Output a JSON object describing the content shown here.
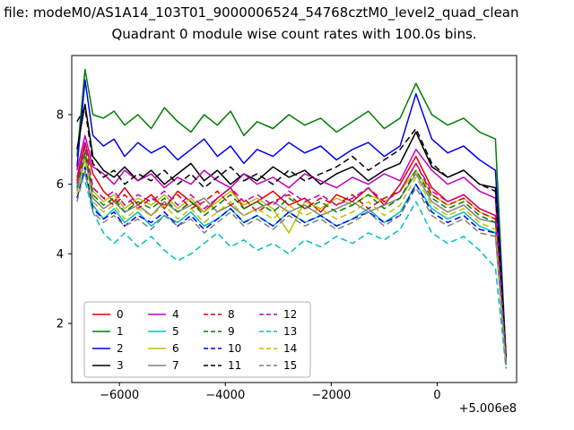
{
  "figure": {
    "file_line": "n file: modeM0/AS1A14_103T01_9000006524_54768cztM0_level2_quad_clean",
    "title": "Quadrant 0 module wise count rates with 100.0s bins."
  },
  "chart_data": {
    "type": "line",
    "title": "Quadrant 0 module wise count rates with 100.0s bins.",
    "xlabel": "",
    "ylabel": "",
    "x_offset_label": "+5.006e8",
    "xlim": [
      -6900,
      1500
    ],
    "ylim": [
      0.3,
      9.7
    ],
    "xticks": [
      -6000,
      -4000,
      -2000,
      0
    ],
    "xtick_labels": [
      "−6000",
      "−4000",
      "−2000",
      "0"
    ],
    "yticks": [
      2,
      4,
      6,
      8
    ],
    "ytick_labels": [
      "2",
      "4",
      "6",
      "8"
    ],
    "grid": false,
    "legend_position": "lower left",
    "legend_columns": 4,
    "x": [
      -6800,
      -6650,
      -6500,
      -6300,
      -6100,
      -5900,
      -5650,
      -5400,
      -5150,
      -4900,
      -4650,
      -4400,
      -4150,
      -3900,
      -3650,
      -3400,
      -3100,
      -2800,
      -2500,
      -2200,
      -1900,
      -1600,
      -1300,
      -1000,
      -700,
      -400,
      -100,
      200,
      500,
      800,
      1100,
      1300
    ],
    "series": [
      {
        "name": "0",
        "color": "#e00000",
        "dash": "solid",
        "values": [
          6.2,
          7.2,
          6.3,
          5.8,
          5.5,
          5.9,
          5.4,
          5.7,
          5.3,
          5.8,
          5.5,
          5.2,
          5.6,
          5.9,
          5.3,
          5.5,
          5.8,
          5.4,
          5.6,
          5.2,
          5.7,
          5.5,
          5.9,
          5.4,
          6.0,
          6.8,
          5.9,
          5.5,
          5.7,
          5.3,
          5.1,
          0.9
        ]
      },
      {
        "name": "1",
        "color": "#007f00",
        "dash": "solid",
        "values": [
          6.8,
          9.3,
          8.0,
          7.9,
          8.1,
          7.7,
          8.0,
          7.6,
          8.2,
          7.8,
          7.5,
          8.0,
          7.7,
          8.1,
          7.4,
          7.8,
          7.6,
          8.0,
          7.7,
          7.9,
          7.5,
          7.8,
          8.1,
          7.6,
          7.9,
          8.9,
          8.0,
          7.7,
          7.9,
          7.5,
          7.3,
          1.0
        ]
      },
      {
        "name": "2",
        "color": "#0000ee",
        "dash": "solid",
        "values": [
          6.5,
          9.0,
          7.4,
          7.1,
          7.3,
          6.8,
          7.2,
          6.9,
          7.1,
          6.7,
          7.0,
          7.3,
          6.8,
          7.1,
          6.6,
          7.0,
          6.8,
          7.2,
          6.9,
          7.1,
          6.7,
          7.0,
          7.2,
          6.8,
          7.1,
          8.6,
          7.3,
          6.9,
          7.1,
          6.7,
          6.4,
          1.1
        ]
      },
      {
        "name": "3",
        "color": "#000000",
        "dash": "solid",
        "values": [
          7.0,
          8.3,
          6.8,
          6.4,
          6.2,
          6.5,
          6.1,
          6.4,
          6.0,
          6.3,
          6.6,
          6.1,
          6.4,
          6.0,
          6.3,
          6.1,
          6.5,
          6.2,
          6.4,
          6.0,
          6.3,
          6.5,
          6.1,
          6.4,
          6.6,
          7.5,
          6.5,
          6.2,
          6.4,
          6.0,
          5.9,
          1.0
        ]
      },
      {
        "name": "4",
        "color": "#bf00bf",
        "dash": "solid",
        "values": [
          6.4,
          7.4,
          6.5,
          6.3,
          6.0,
          6.4,
          6.1,
          6.3,
          5.9,
          6.2,
          6.0,
          6.4,
          6.1,
          5.9,
          6.3,
          6.0,
          6.2,
          5.9,
          6.3,
          6.1,
          5.9,
          6.2,
          6.0,
          6.3,
          6.1,
          7.0,
          6.4,
          6.0,
          6.2,
          5.8,
          5.6,
          0.9
        ]
      },
      {
        "name": "5",
        "color": "#00bfbf",
        "dash": "solid",
        "values": [
          5.9,
          6.3,
          5.4,
          5.0,
          5.3,
          4.9,
          5.2,
          4.8,
          5.1,
          4.9,
          5.2,
          4.8,
          5.0,
          5.3,
          4.9,
          5.1,
          4.8,
          5.2,
          4.9,
          5.1,
          4.8,
          5.0,
          5.3,
          4.9,
          5.2,
          6.0,
          5.3,
          5.0,
          5.2,
          4.8,
          4.6,
          0.8
        ]
      },
      {
        "name": "6",
        "color": "#bfbf00",
        "dash": "solid",
        "values": [
          6.0,
          7.0,
          5.8,
          5.5,
          5.7,
          5.3,
          5.6,
          5.4,
          5.7,
          5.3,
          5.6,
          5.2,
          5.5,
          5.8,
          5.4,
          5.6,
          5.3,
          4.6,
          5.5,
          5.3,
          5.6,
          5.4,
          5.7,
          5.5,
          5.8,
          6.4,
          5.7,
          5.4,
          5.6,
          5.2,
          5.0,
          0.9
        ]
      },
      {
        "name": "7",
        "color": "#808080",
        "dash": "solid",
        "values": [
          5.8,
          6.8,
          5.6,
          5.3,
          5.5,
          5.2,
          5.4,
          5.1,
          5.5,
          5.2,
          5.4,
          5.6,
          5.2,
          5.4,
          5.1,
          5.3,
          5.5,
          5.2,
          5.4,
          5.1,
          5.3,
          5.5,
          5.2,
          5.4,
          5.6,
          6.3,
          5.5,
          5.2,
          5.4,
          5.0,
          4.9,
          0.8
        ]
      },
      {
        "name": "8",
        "color": "#e00000",
        "dash": "dashed",
        "values": [
          6.1,
          7.1,
          5.9,
          5.6,
          5.4,
          5.7,
          5.3,
          5.6,
          5.4,
          5.7,
          5.3,
          5.5,
          5.8,
          5.4,
          5.6,
          5.2,
          5.5,
          5.7,
          5.3,
          5.6,
          5.4,
          5.7,
          5.3,
          5.6,
          5.8,
          6.6,
          5.7,
          5.4,
          5.6,
          5.2,
          5.0,
          0.9
        ]
      },
      {
        "name": "9",
        "color": "#007f00",
        "dash": "dashed",
        "values": [
          5.9,
          6.9,
          5.7,
          5.4,
          5.6,
          5.2,
          5.5,
          5.3,
          5.6,
          5.2,
          5.5,
          5.1,
          5.4,
          5.7,
          5.3,
          5.5,
          5.2,
          5.6,
          5.3,
          5.5,
          5.2,
          5.4,
          5.7,
          5.3,
          5.6,
          6.4,
          5.6,
          5.3,
          5.5,
          5.1,
          4.9,
          0.8
        ]
      },
      {
        "name": "10",
        "color": "#0000ee",
        "dash": "dashed",
        "values": [
          5.6,
          6.5,
          5.3,
          5.0,
          5.2,
          4.8,
          5.1,
          4.9,
          5.2,
          4.8,
          5.1,
          4.7,
          5.0,
          5.3,
          4.9,
          5.1,
          4.8,
          5.2,
          4.9,
          5.1,
          4.8,
          5.0,
          5.2,
          4.9,
          5.1,
          6.0,
          5.2,
          4.9,
          5.1,
          4.7,
          4.6,
          0.8
        ]
      },
      {
        "name": "11",
        "color": "#000000",
        "dash": "dashed",
        "values": [
          7.8,
          8.2,
          6.6,
          6.2,
          6.4,
          6.0,
          6.3,
          6.1,
          6.4,
          6.0,
          6.3,
          5.9,
          6.2,
          6.5,
          6.1,
          6.3,
          6.0,
          6.4,
          6.1,
          6.3,
          6.5,
          6.8,
          6.4,
          6.7,
          7.0,
          7.6,
          6.6,
          6.2,
          6.4,
          6.0,
          5.8,
          1.0
        ]
      },
      {
        "name": "12",
        "color": "#bf00bf",
        "dash": "dashed",
        "values": [
          6.0,
          7.2,
          5.9,
          5.6,
          5.8,
          5.4,
          5.7,
          5.5,
          5.8,
          5.4,
          5.7,
          5.3,
          5.6,
          5.9,
          5.5,
          5.7,
          5.4,
          5.8,
          5.5,
          5.7,
          5.4,
          5.6,
          5.9,
          5.5,
          5.8,
          6.6,
          5.8,
          5.5,
          5.7,
          5.3,
          5.1,
          0.9
        ]
      },
      {
        "name": "13",
        "color": "#00bfbf",
        "dash": "dashed",
        "values": [
          6.0,
          6.1,
          5.2,
          4.6,
          4.3,
          4.6,
          4.2,
          4.5,
          4.1,
          3.8,
          4.0,
          4.3,
          4.6,
          4.2,
          4.4,
          4.1,
          4.3,
          4.0,
          4.4,
          4.2,
          4.5,
          4.3,
          4.6,
          4.4,
          4.7,
          5.5,
          4.6,
          4.3,
          4.5,
          4.1,
          3.6,
          0.7
        ]
      },
      {
        "name": "14",
        "color": "#bfbf00",
        "dash": "dashed",
        "values": [
          5.7,
          6.7,
          5.5,
          5.2,
          5.4,
          5.0,
          5.3,
          5.1,
          5.4,
          5.0,
          5.3,
          4.9,
          5.2,
          5.5,
          5.1,
          5.3,
          5.0,
          5.4,
          5.1,
          5.3,
          5.0,
          5.2,
          5.5,
          5.1,
          5.4,
          6.2,
          5.4,
          5.1,
          5.3,
          4.9,
          4.7,
          0.8
        ]
      },
      {
        "name": "15",
        "color": "#808080",
        "dash": "dashed",
        "values": [
          5.5,
          6.4,
          5.2,
          4.9,
          5.1,
          4.8,
          5.0,
          4.7,
          5.1,
          4.8,
          5.0,
          4.6,
          4.9,
          5.2,
          4.8,
          5.0,
          4.7,
          5.1,
          4.8,
          5.0,
          4.7,
          4.9,
          5.2,
          4.8,
          5.1,
          5.9,
          5.1,
          4.8,
          5.0,
          4.6,
          4.5,
          0.8
        ]
      }
    ]
  }
}
